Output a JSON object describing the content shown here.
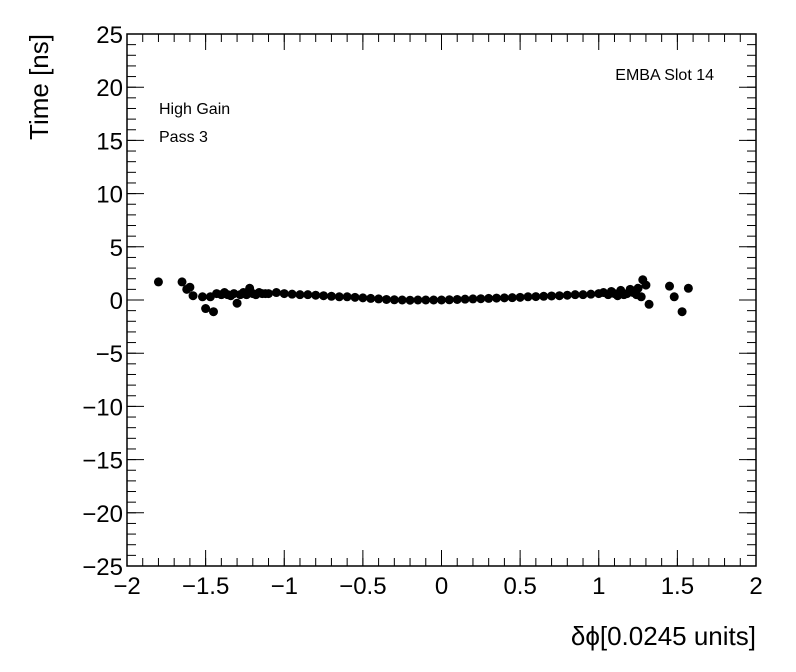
{
  "chart_data": {
    "type": "scatter",
    "title": "",
    "xlabel": "δϕ[0.0245 units]",
    "ylabel": "Time [ns]",
    "xlim": [
      -2,
      2
    ],
    "ylim": [
      -25,
      25
    ],
    "grid": false,
    "x_ticks": [
      -2,
      -1.5,
      -1,
      -0.5,
      0,
      0.5,
      1,
      1.5,
      2
    ],
    "x_tick_labels": [
      "−2",
      "−1.5",
      "−1",
      "−0.5",
      "0",
      "0.5",
      "1",
      "1.5",
      "2"
    ],
    "y_ticks": [
      25,
      20,
      15,
      10,
      5,
      0,
      -5,
      -10,
      -15,
      -20,
      -25
    ],
    "y_tick_labels": [
      "25",
      "20",
      "15",
      "10",
      "5",
      "0",
      "−5",
      "−10",
      "−15",
      "−20",
      "−25"
    ],
    "annotations": {
      "gain": "High Gain",
      "pass": "Pass 3",
      "module": "EMBA Slot 14"
    },
    "marker_color": "#000000",
    "series": [
      {
        "points": [
          [
            -1.8,
            1.7
          ],
          [
            -1.65,
            1.7
          ],
          [
            -1.62,
            1.0
          ],
          [
            -1.6,
            1.2
          ],
          [
            -1.58,
            0.4
          ],
          [
            -1.52,
            0.3
          ],
          [
            -1.5,
            -0.8
          ],
          [
            -1.47,
            0.3
          ],
          [
            -1.45,
            -1.1
          ],
          [
            -1.43,
            0.6
          ],
          [
            -1.4,
            0.5
          ],
          [
            -1.38,
            0.7
          ],
          [
            -1.36,
            0.5
          ],
          [
            -1.34,
            0.4
          ],
          [
            -1.32,
            0.6
          ],
          [
            -1.3,
            -0.3
          ],
          [
            -1.28,
            0.5
          ],
          [
            -1.26,
            0.7
          ],
          [
            -1.24,
            0.5
          ],
          [
            -1.22,
            1.1
          ],
          [
            -1.2,
            0.6
          ],
          [
            -1.18,
            0.5
          ],
          [
            -1.16,
            0.7
          ],
          [
            -1.14,
            0.6
          ],
          [
            -1.12,
            0.6
          ],
          [
            -1.1,
            0.6
          ],
          [
            -1.05,
            0.7
          ],
          [
            -1.0,
            0.6
          ],
          [
            -0.95,
            0.55
          ],
          [
            -0.9,
            0.5
          ],
          [
            -0.85,
            0.5
          ],
          [
            -0.8,
            0.45
          ],
          [
            -0.75,
            0.4
          ],
          [
            -0.7,
            0.35
          ],
          [
            -0.65,
            0.3
          ],
          [
            -0.6,
            0.3
          ],
          [
            -0.55,
            0.25
          ],
          [
            -0.5,
            0.2
          ],
          [
            -0.45,
            0.15
          ],
          [
            -0.4,
            0.1
          ],
          [
            -0.35,
            0.05
          ],
          [
            -0.3,
            0.02
          ],
          [
            -0.25,
            0.0
          ],
          [
            -0.2,
            -0.02
          ],
          [
            -0.15,
            0.0
          ],
          [
            -0.1,
            0.0
          ],
          [
            -0.05,
            0.0
          ],
          [
            0.0,
            0.0
          ],
          [
            0.05,
            0.02
          ],
          [
            0.1,
            0.05
          ],
          [
            0.15,
            0.08
          ],
          [
            0.2,
            0.1
          ],
          [
            0.25,
            0.12
          ],
          [
            0.3,
            0.15
          ],
          [
            0.35,
            0.18
          ],
          [
            0.4,
            0.2
          ],
          [
            0.45,
            0.22
          ],
          [
            0.5,
            0.25
          ],
          [
            0.55,
            0.3
          ],
          [
            0.6,
            0.32
          ],
          [
            0.65,
            0.35
          ],
          [
            0.7,
            0.38
          ],
          [
            0.75,
            0.4
          ],
          [
            0.8,
            0.45
          ],
          [
            0.85,
            0.5
          ],
          [
            0.9,
            0.5
          ],
          [
            0.95,
            0.55
          ],
          [
            1.0,
            0.6
          ],
          [
            1.03,
            0.7
          ],
          [
            1.06,
            0.5
          ],
          [
            1.08,
            0.8
          ],
          [
            1.1,
            0.6
          ],
          [
            1.12,
            0.4
          ],
          [
            1.14,
            0.9
          ],
          [
            1.16,
            0.5
          ],
          [
            1.18,
            0.6
          ],
          [
            1.2,
            1.0
          ],
          [
            1.22,
            0.7
          ],
          [
            1.24,
            0.5
          ],
          [
            1.25,
            1.1
          ],
          [
            1.27,
            0.3
          ],
          [
            1.28,
            1.9
          ],
          [
            1.3,
            1.4
          ],
          [
            1.32,
            -0.4
          ],
          [
            1.45,
            1.3
          ],
          [
            1.48,
            0.3
          ],
          [
            1.53,
            -1.1
          ],
          [
            1.57,
            1.1
          ]
        ]
      }
    ]
  }
}
